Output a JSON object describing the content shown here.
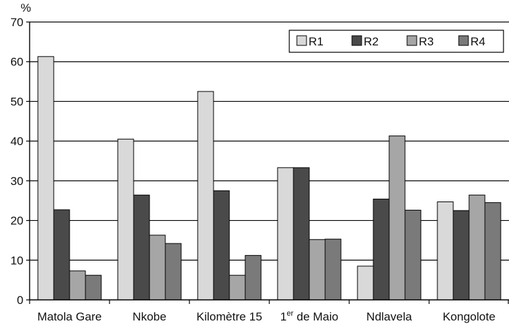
{
  "chart_data": {
    "type": "bar",
    "ylabel": "%",
    "ylim": [
      0,
      70
    ],
    "yticks": [
      0,
      10,
      20,
      30,
      40,
      50,
      60,
      70
    ],
    "grid": true,
    "legend_position": "top-right",
    "categories": [
      {
        "main": "Matola Gare",
        "pre": "",
        "sup": "",
        "post": ""
      },
      {
        "main": "Nkobe",
        "pre": "",
        "sup": "",
        "post": ""
      },
      {
        "main": "Kilomètre 15",
        "pre": "",
        "sup": "",
        "post": ""
      },
      {
        "main": "",
        "pre": "1",
        "sup": "er",
        "post": " de Maio"
      },
      {
        "main": "Ndlavela",
        "pre": "",
        "sup": "",
        "post": ""
      },
      {
        "main": "Kongolote",
        "pre": "",
        "sup": "",
        "post": ""
      }
    ],
    "series": [
      {
        "name": "R1",
        "color": "#d9d9d9",
        "values": [
          61.3,
          40.5,
          52.5,
          33.3,
          8.5,
          24.7
        ]
      },
      {
        "name": "R2",
        "color": "#4a4a4a",
        "values": [
          22.7,
          26.4,
          27.5,
          33.3,
          25.4,
          22.5
        ]
      },
      {
        "name": "R3",
        "color": "#a6a6a6",
        "values": [
          7.3,
          16.3,
          6.2,
          15.2,
          41.3,
          26.4
        ]
      },
      {
        "name": "R4",
        "color": "#7a7a7a",
        "values": [
          6.2,
          14.2,
          11.2,
          15.3,
          22.6,
          24.5
        ]
      }
    ]
  }
}
